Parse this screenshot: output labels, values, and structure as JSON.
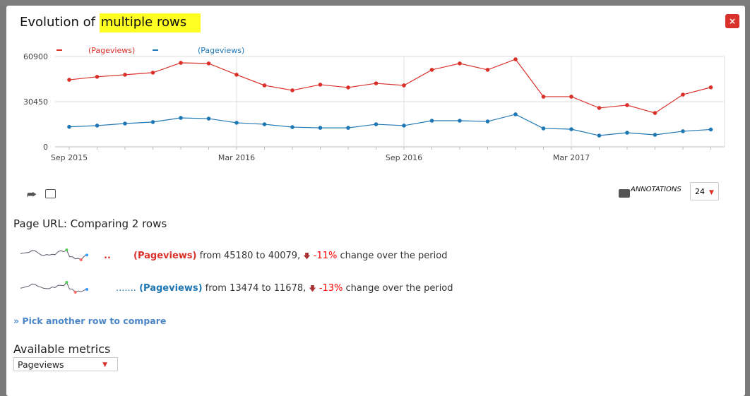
{
  "dialog": {
    "title_prefix": "Evolution of ",
    "title_highlight": "multiple rows",
    "close_label": "×"
  },
  "chart_data": {
    "type": "line",
    "x": [
      "2015-09",
      "2015-10",
      "2015-11",
      "2015-12",
      "2016-01",
      "2016-02",
      "2016-03",
      "2016-04",
      "2016-05",
      "2016-06",
      "2016-07",
      "2016-08",
      "2016-09",
      "2016-10",
      "2016-11",
      "2016-12",
      "2017-01",
      "2017-02",
      "2017-03",
      "2017-04",
      "2017-05",
      "2017-06",
      "2017-07",
      "2017-08"
    ],
    "x_tick_labels": [
      "Sep 2015",
      "Mar 2016",
      "Sep 2016",
      "Mar 2017"
    ],
    "y_tick_labels": [
      "0",
      "30450",
      "60900"
    ],
    "ylim": [
      0,
      60900
    ],
    "grid": true,
    "legend": "top-left",
    "series": [
      {
        "name": "(Pageviews)",
        "color": "#d9302a",
        "values": [
          45180,
          47200,
          48600,
          50000,
          56600,
          56200,
          48600,
          41400,
          38100,
          41900,
          40000,
          42800,
          41400,
          51900,
          56200,
          51900,
          59000,
          33800,
          33800,
          26200,
          28100,
          22800,
          35200,
          40079
        ]
      },
      {
        "name": "(Pageviews)",
        "color": "#1f77b4",
        "values": [
          13474,
          14300,
          15700,
          16700,
          19500,
          19000,
          16200,
          15200,
          13300,
          12800,
          12800,
          15200,
          14300,
          17600,
          17600,
          17100,
          21900,
          12400,
          11900,
          7600,
          9500,
          8100,
          10500,
          11678
        ]
      }
    ]
  },
  "toolbar": {
    "export_icon": "share-icon",
    "image_icon": "image-icon",
    "annotations_label": "ANNOTATIONS",
    "periods_value": "24"
  },
  "comparison": {
    "heading": "Page URL: Comparing 2 rows",
    "rows": [
      {
        "label_prefix": "..",
        "metric": "(Pageviews)",
        "from_text": " from ",
        "from": "45180",
        "to_text": " to ",
        "to": "40079",
        "sep": ",",
        "change": "-11%",
        "suffix": " change over the period"
      },
      {
        "label_prefix": ".......",
        "metric": "(Pageviews)",
        "from_text": " from ",
        "from": "13474",
        "to_text": " to ",
        "to": "11678",
        "sep": ",",
        "change": "-13%",
        "suffix": " change over the period"
      }
    ],
    "pick_link": "» Pick another row to compare"
  },
  "metrics": {
    "heading": "Available metrics",
    "selected": "Pageviews"
  }
}
